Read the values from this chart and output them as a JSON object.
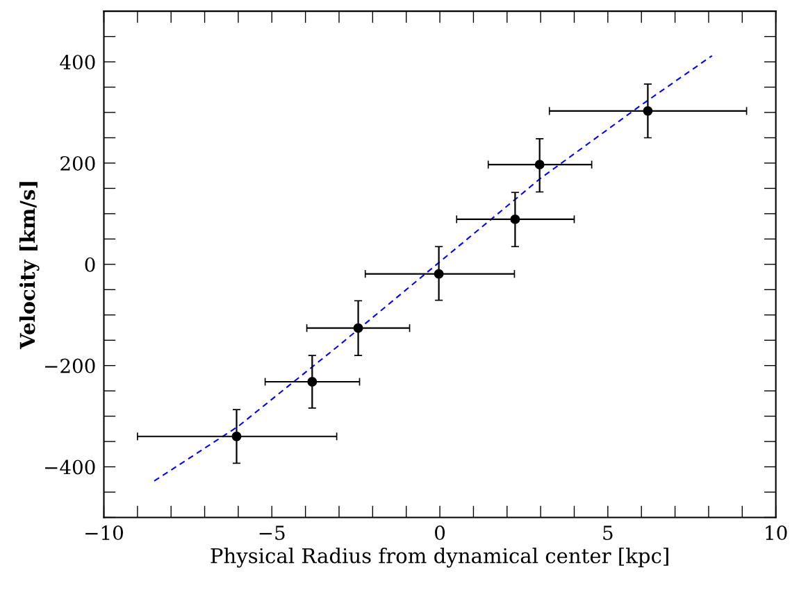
{
  "chart_data": {
    "type": "scatter",
    "xlabel": "Physical Radius from dynamical center [kpc]",
    "ylabel": "Velocity [km/s]",
    "xlim": [
      -10,
      10
    ],
    "ylim": [
      -500,
      500
    ],
    "xticks": [
      {
        "value": -10,
        "label": "−10"
      },
      {
        "value": -5,
        "label": "−5"
      },
      0,
      5,
      10
    ],
    "yticks": [
      {
        "value": -400,
        "label": "−400"
      },
      {
        "value": -200,
        "label": "−200"
      },
      0,
      200,
      400
    ],
    "grid": false,
    "legend": false,
    "series": [
      {
        "color": "#000000",
        "marker": "circle",
        "x": [
          -6.05,
          -3.8,
          -2.43,
          -0.03,
          2.24,
          2.97,
          6.19
        ],
        "values": [
          -340,
          -232,
          -126,
          -19,
          89,
          197,
          303
        ],
        "errors": [
          [
            -393,
            -287
          ],
          [
            -284,
            -180
          ],
          [
            -180,
            -72
          ],
          [
            -71,
            35
          ],
          [
            35,
            142
          ],
          [
            143,
            248
          ],
          [
            250,
            356
          ]
        ],
        "xerrors": [
          [
            -9.0,
            -3.07
          ],
          [
            -5.2,
            -2.39
          ],
          [
            -3.96,
            -0.9
          ],
          [
            -2.22,
            2.22
          ],
          [
            0.5,
            4.0
          ],
          [
            1.44,
            4.52
          ],
          [
            3.26,
            9.13
          ]
        ]
      },
      {
        "type": "line",
        "color": "#0000ff",
        "line_style": "dashed",
        "marker": "none",
        "x": [
          -8.5,
          -6,
          -3,
          0,
          3,
          6,
          8.1
        ],
        "values": [
          -428,
          -320,
          -160,
          5,
          170,
          315,
          412
        ]
      }
    ]
  }
}
